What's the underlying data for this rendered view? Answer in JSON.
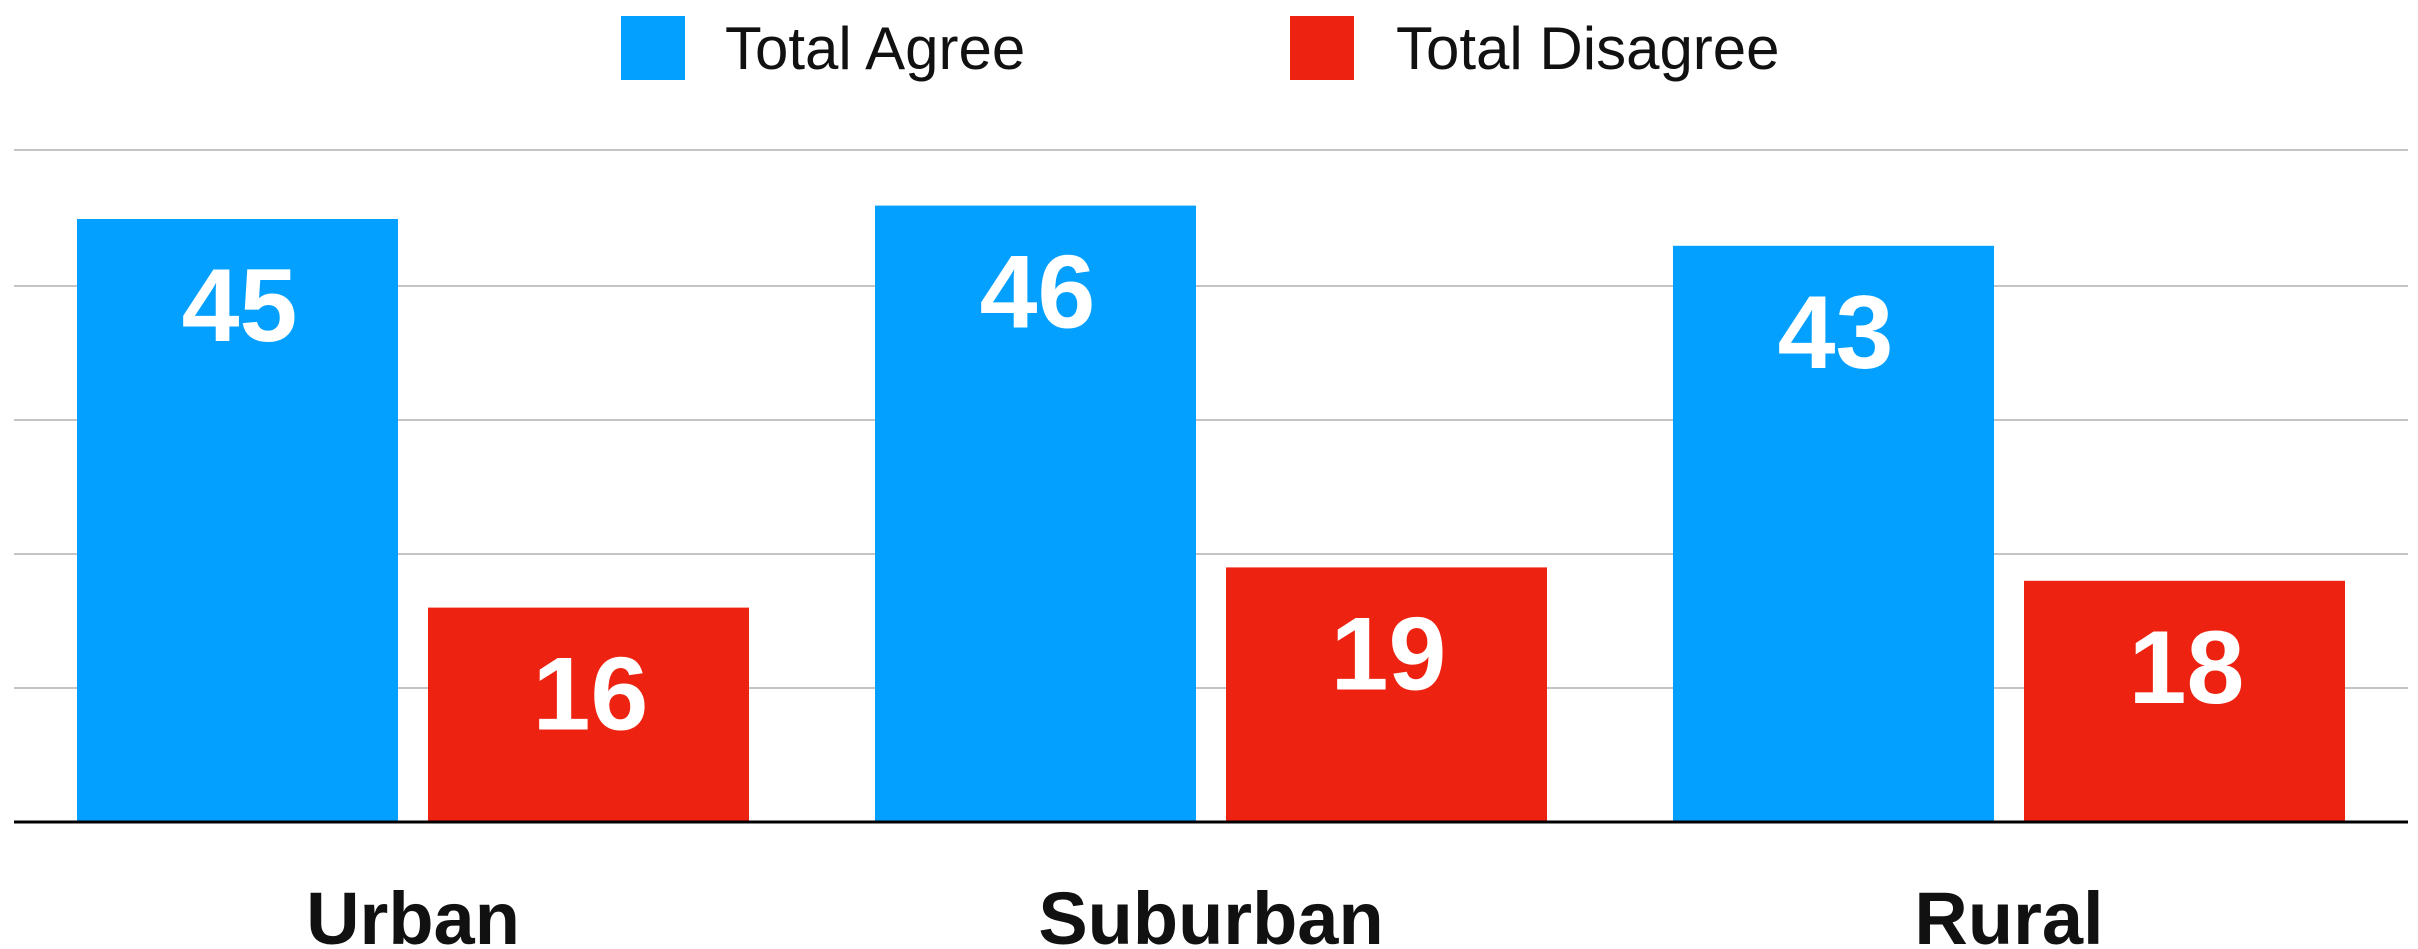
{
  "chart_data": {
    "type": "bar",
    "categories": [
      "Urban",
      "Suburban",
      "Rural"
    ],
    "series": [
      {
        "name": "Total Agree",
        "values": [
          45,
          46,
          43
        ],
        "color": "#03A0FF"
      },
      {
        "name": "Total Disagree",
        "values": [
          16,
          19,
          18
        ],
        "color": "#EE2210"
      }
    ],
    "ylim": [
      0,
      50
    ],
    "grid": true,
    "legend_position": "top-center",
    "data_labels": true
  }
}
